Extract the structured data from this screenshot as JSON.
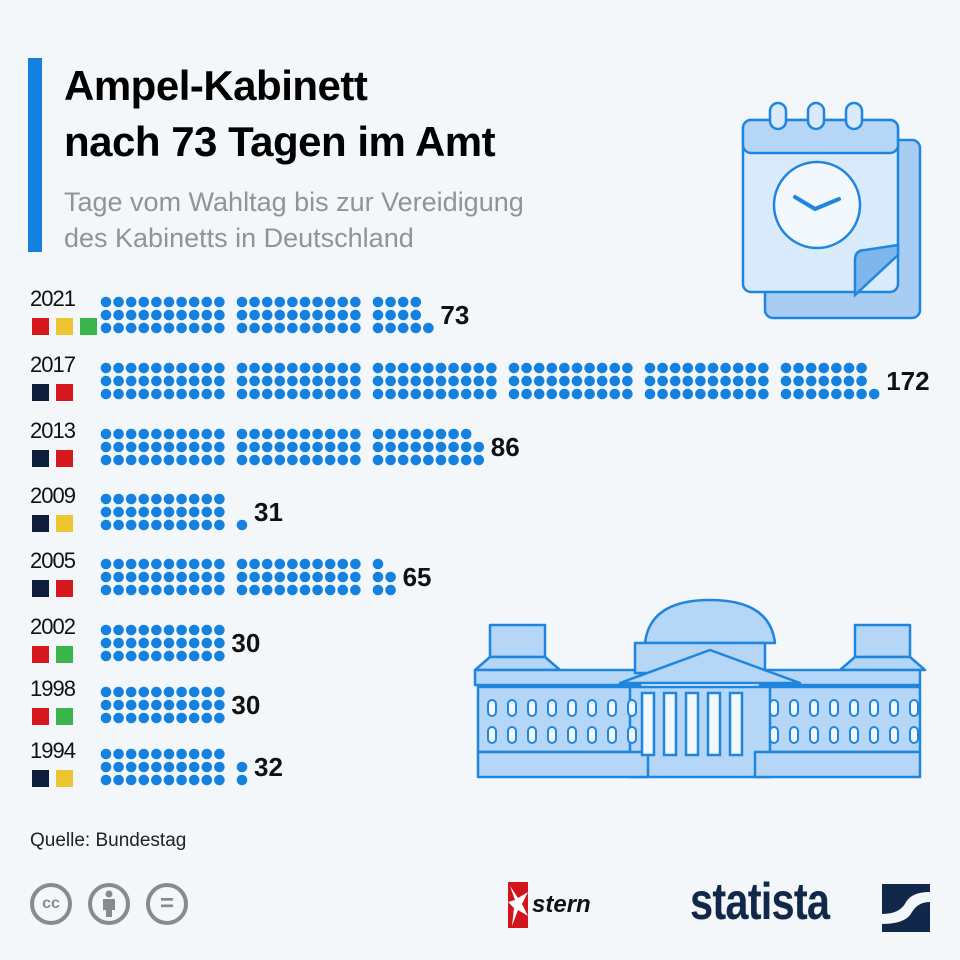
{
  "header": {
    "title_line1": "Ampel-Kabinett",
    "title_line2": "nach 73 Tagen im Amt",
    "subtitle_line1": "Tage vom Wahltag bis zur Vereidigung",
    "subtitle_line2": "des Kabinetts in Deutschland"
  },
  "colors": {
    "accent": "#1481e0",
    "dot": "#1481e0",
    "red": "#d7191f",
    "yellow": "#ecc530",
    "green": "#39b54a",
    "black": "#0e1d3a"
  },
  "chart_data": {
    "type": "bar",
    "title": "Ampel-Kabinett nach 73 Tagen im Amt",
    "subtitle": "Tage vom Wahltag bis zur Vereidigung des Kabinetts in Deutschland",
    "xlabel": "",
    "ylabel": "Tage",
    "unit_note": "each dot = 1 day",
    "categories": [
      "2021",
      "2017",
      "2013",
      "2009",
      "2005",
      "2002",
      "1998",
      "1994"
    ],
    "values": [
      73,
      172,
      86,
      31,
      65,
      30,
      30,
      32
    ],
    "coalitions": [
      [
        "red",
        "yellow",
        "green"
      ],
      [
        "black",
        "red"
      ],
      [
        "black",
        "red"
      ],
      [
        "black",
        "yellow"
      ],
      [
        "black",
        "red"
      ],
      [
        "red",
        "green"
      ],
      [
        "red",
        "green"
      ],
      [
        "black",
        "yellow"
      ]
    ]
  },
  "footer": {
    "source": "Quelle: Bundestag",
    "license_icons": [
      "cc-icon",
      "attribution-icon",
      "no-derivatives-icon"
    ],
    "cc_label": "cc",
    "nd_label": "=",
    "stern_label": "stern",
    "statista_label": "statista"
  }
}
